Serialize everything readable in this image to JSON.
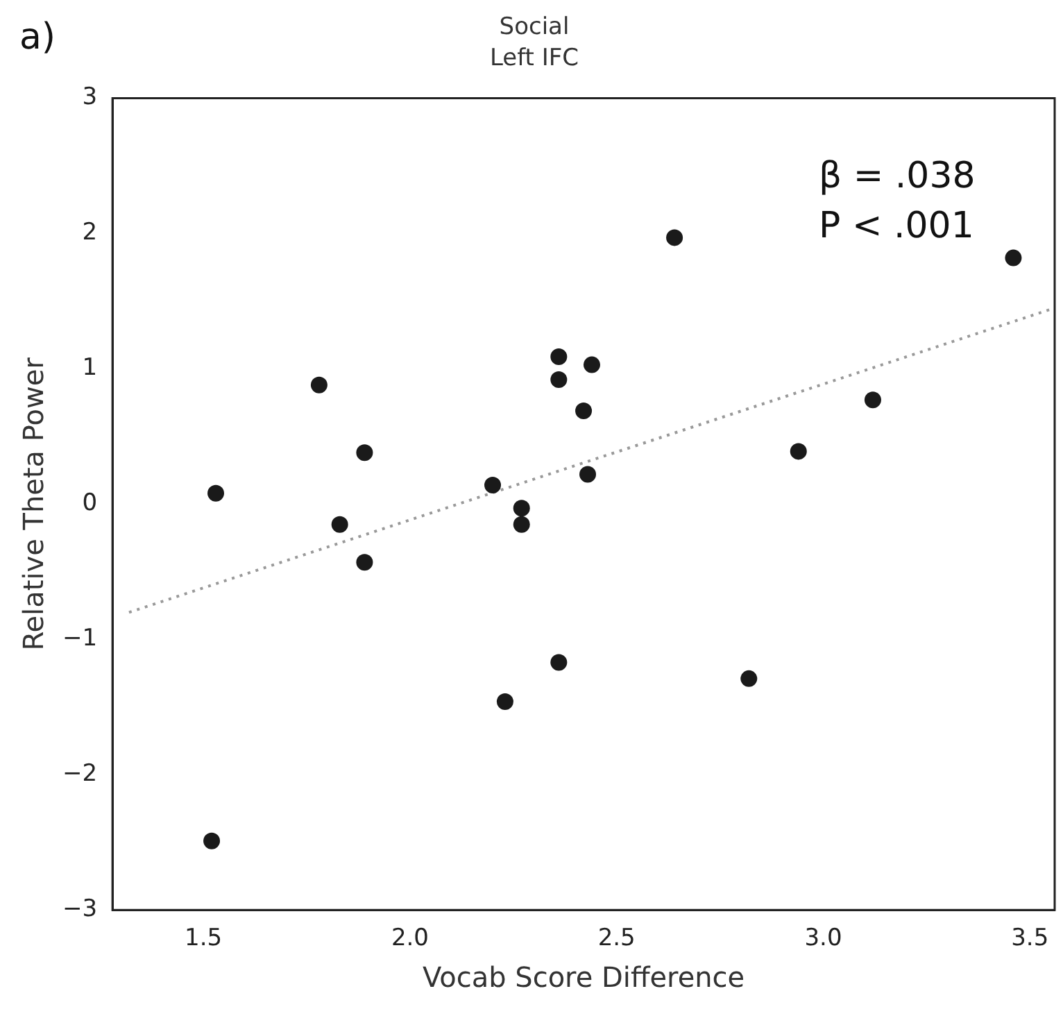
{
  "chart_data": {
    "type": "scatter",
    "title": "Social",
    "subtitle": "Left IFC",
    "xlabel": "Vocab Score Difference",
    "ylabel": "Relative Theta Power",
    "annotations": [
      "a)",
      "β = .038",
      "P < .001"
    ],
    "xlim": [
      1.28,
      3.56
    ],
    "xticks": [
      1.5,
      {
        "value": 2,
        "label": "2.0"
      },
      2.5,
      {
        "value": 3,
        "label": "3.0"
      },
      3.5
    ],
    "ylim": [
      -3,
      3
    ],
    "yticks": [
      -3,
      -2,
      -1,
      0,
      1,
      2,
      3
    ],
    "grid": false,
    "legend": false,
    "series": [
      {
        "type": "scatter",
        "color": "#1a1a1a",
        "marker": "circle",
        "x": [
          1.53,
          1.52,
          1.78,
          1.83,
          1.89,
          1.89,
          2.2,
          2.23,
          2.27,
          2.27,
          2.36,
          2.36,
          2.36,
          2.42,
          2.44,
          2.43,
          2.64,
          2.82,
          2.94,
          3.12,
          3.46
        ],
        "values": [
          0.08,
          -2.49,
          0.88,
          -0.15,
          0.38,
          -0.43,
          0.14,
          -1.46,
          -0.03,
          -0.15,
          1.09,
          0.92,
          -1.17,
          0.69,
          1.03,
          0.22,
          1.97,
          -1.29,
          0.39,
          0.77,
          1.82
        ]
      },
      {
        "type": "line",
        "color": "#999999",
        "marker": "none",
        "line_style": "dotted",
        "x": [
          1.32,
          3.56
        ],
        "values": [
          -0.8,
          1.45
        ]
      }
    ]
  }
}
